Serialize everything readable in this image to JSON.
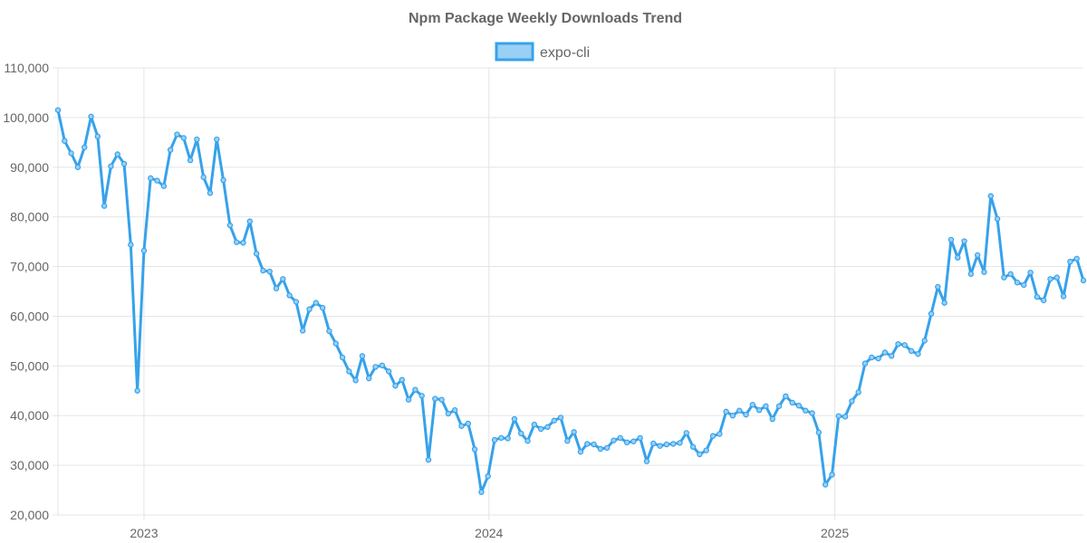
{
  "chart_data": {
    "type": "line",
    "title": "Npm Package Weekly Downloads Trend",
    "xlabel": "",
    "ylabel": "",
    "ylim": [
      20000,
      110000
    ],
    "y_ticks": [
      "20,000",
      "30,000",
      "40,000",
      "50,000",
      "60,000",
      "70,000",
      "80,000",
      "90,000",
      "100,000",
      "110,000"
    ],
    "x_ticks": [
      "2023",
      "2024",
      "2025"
    ],
    "grid": true,
    "legend_position": "top",
    "x_start": "2022-10-02",
    "x_step_days": 7,
    "series": [
      {
        "name": "expo-cli",
        "color": "#36a2eb",
        "fill": "#9ad0f5",
        "values": [
          101500,
          95300,
          92800,
          90000,
          94000,
          100200,
          96200,
          82200,
          90200,
          92600,
          90700,
          74400,
          45000,
          73200,
          87800,
          87300,
          86200,
          93500,
          96600,
          95900,
          91400,
          95600,
          88000,
          84800,
          95600,
          87400,
          78300,
          74900,
          74800,
          79100,
          72600,
          69200,
          69000,
          65600,
          67500,
          64200,
          62900,
          57100,
          61400,
          62700,
          61700,
          57000,
          54500,
          51700,
          48900,
          47100,
          52000,
          47500,
          49800,
          50100,
          48900,
          46000,
          47200,
          43200,
          45200,
          44000,
          31100,
          43400,
          43200,
          40400,
          41100,
          37900,
          38400,
          33200,
          24600,
          27800,
          35100,
          35500,
          35400,
          39300,
          36400,
          34900,
          38200,
          37300,
          37700,
          39000,
          39600,
          34900,
          36700,
          32700,
          34300,
          34200,
          33300,
          33500,
          35000,
          35500,
          34600,
          34800,
          35500,
          30800,
          34400,
          33900,
          34200,
          34300,
          34500,
          36500,
          33700,
          32200,
          33000,
          35900,
          36300,
          40800,
          40000,
          41000,
          40200,
          42200,
          41100,
          41900,
          39300,
          41900,
          43900,
          42600,
          42000,
          41000,
          40500,
          36600,
          26100,
          28100,
          39900,
          39800,
          42900,
          44700,
          50500,
          51700,
          51500,
          52700,
          52000,
          54400,
          54200,
          53000,
          52400,
          55100,
          60500,
          65900,
          62700,
          75400,
          71800,
          75100,
          68500,
          72300,
          68900,
          84200,
          79600,
          67800,
          68500,
          66800,
          66300,
          68800,
          63900,
          63200,
          67500,
          67800,
          64000,
          71000,
          71600,
          67200
        ]
      }
    ]
  }
}
